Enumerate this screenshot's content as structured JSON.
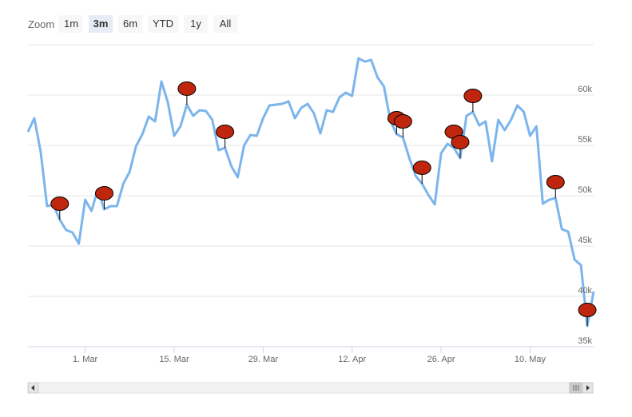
{
  "chart_data": {
    "type": "line",
    "range_selector": {
      "label": "Zoom",
      "buttons": [
        "1m",
        "3m",
        "6m",
        "YTD",
        "1y",
        "All"
      ],
      "selected": 1
    },
    "categories": [
      null,
      null,
      null,
      null,
      null,
      null,
      null,
      null,
      null,
      "1. Mar",
      null,
      null,
      null,
      null,
      null,
      null,
      null,
      null,
      null,
      null,
      null,
      null,
      null,
      "15. Mar",
      null,
      null,
      null,
      null,
      null,
      null,
      null,
      null,
      null,
      null,
      null,
      null,
      null,
      "29. Mar",
      null,
      null,
      null,
      null,
      null,
      null,
      null,
      null,
      null,
      null,
      null,
      null,
      null,
      "12. Apr",
      null,
      null,
      null,
      null,
      null,
      null,
      null,
      null,
      null,
      null,
      null,
      null,
      null,
      "26. Apr",
      null,
      null,
      null,
      null,
      null,
      null,
      null,
      null,
      null,
      null,
      null,
      null,
      null,
      "10. May",
      null,
      null,
      null,
      null,
      null,
      null,
      null,
      null,
      null,
      null
    ],
    "series": [
      {
        "color": "#7cb5ec",
        "values": [
          56350,
          57700,
          54370,
          48970,
          49100,
          47620,
          46590,
          46350,
          45240,
          49600,
          48490,
          50640,
          48650,
          48970,
          48970,
          51190,
          52380,
          54920,
          56110,
          57860,
          57380,
          61350,
          59290,
          55950,
          56900,
          59050,
          57940,
          58490,
          58410,
          57540,
          54520,
          54760,
          52940,
          51830,
          55000,
          56030,
          55950,
          57700,
          58970,
          59050,
          59130,
          59370,
          57700,
          58730,
          59130,
          58180,
          56190,
          58490,
          58330,
          59760,
          60240,
          59920,
          63650,
          63330,
          63490,
          61750,
          60870,
          57540,
          56110,
          55790,
          53730,
          51980,
          51190,
          50080,
          49130,
          54210,
          55160,
          54760,
          53730,
          57940,
          58330,
          56990,
          57380,
          53410,
          57540,
          56510,
          57540,
          58970,
          58330,
          55950,
          56900,
          49210,
          49600,
          49760,
          46670,
          46430,
          43650,
          43100,
          37060,
          40480
        ]
      }
    ],
    "flags": {
      "color": "#c0260d",
      "points": [
        5,
        12,
        25,
        31,
        58,
        59,
        62,
        67,
        68,
        70,
        83,
        88
      ]
    },
    "ylim": [
      35000,
      65000
    ],
    "yticks": [
      {
        "value": 35000,
        "label": "35k"
      },
      {
        "value": 40000,
        "label": "40k"
      },
      {
        "value": 45000,
        "label": "45k"
      },
      {
        "value": 50000,
        "label": "50k"
      },
      {
        "value": 55000,
        "label": "55k"
      },
      {
        "value": 60000,
        "label": "60k"
      }
    ],
    "grid": true
  }
}
